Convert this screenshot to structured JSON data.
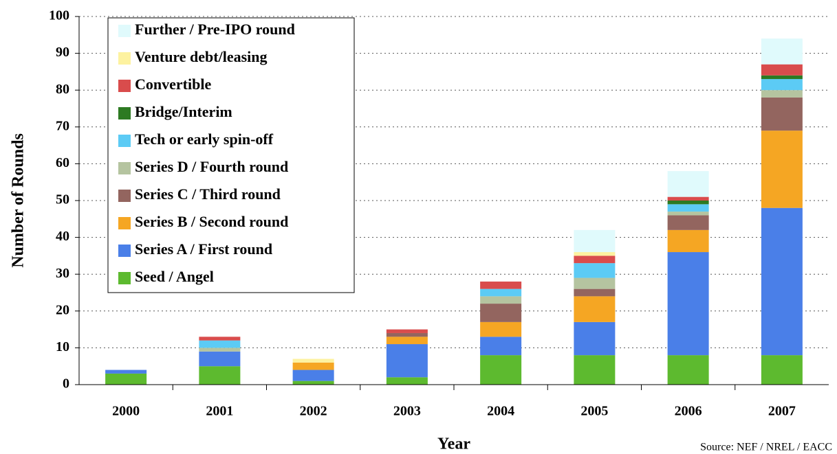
{
  "chart_data": {
    "type": "stacked_bar",
    "x_label": "Year",
    "y_label": "Number of Rounds",
    "annotation": "Source: NEF / NREL / EACC",
    "categories": [
      "2000",
      "2001",
      "2002",
      "2003",
      "2004",
      "2005",
      "2006",
      "2007"
    ],
    "series": [
      {
        "name": "Seed / Angel",
        "color": "#5dba2f",
        "values": [
          3,
          5,
          1,
          2,
          8,
          8,
          8,
          8
        ]
      },
      {
        "name": "Series A / First round",
        "color": "#4a7fe8",
        "values": [
          1,
          4,
          3,
          9,
          5,
          9,
          28,
          40
        ]
      },
      {
        "name": "Series B / Second round",
        "color": "#f5a623",
        "values": [
          0,
          0,
          2,
          2,
          4,
          7,
          6,
          21
        ]
      },
      {
        "name": "Series C / Third round",
        "color": "#93655f",
        "values": [
          0,
          0,
          0,
          1,
          5,
          2,
          4,
          9
        ]
      },
      {
        "name": "Series D / Fourth round",
        "color": "#b5c4a0",
        "values": [
          0,
          1,
          0,
          0,
          2,
          3,
          1,
          2
        ]
      },
      {
        "name": "Tech or early spin-off",
        "color": "#5ccbf5",
        "values": [
          0,
          2,
          0,
          0,
          2,
          4,
          2,
          3
        ]
      },
      {
        "name": "Bridge/Interim",
        "color": "#2d7a22",
        "values": [
          0,
          0,
          0,
          0,
          0,
          0,
          1,
          1
        ]
      },
      {
        "name": "Convertible",
        "color": "#d94c4c",
        "values": [
          0,
          1,
          0,
          1,
          2,
          2,
          1,
          3
        ]
      },
      {
        "name": "Venture debt/leasing",
        "color": "#fdf2a0",
        "values": [
          0,
          0,
          1,
          0,
          0,
          1,
          0,
          0
        ]
      },
      {
        "name": "Further / Pre-IPO round",
        "color": "#e0fafc",
        "values": [
          0,
          0,
          0,
          0,
          0,
          6,
          7,
          7
        ]
      }
    ],
    "ylim": [
      0,
      100
    ],
    "yticks": [
      0,
      10,
      20,
      30,
      40,
      50,
      60,
      70,
      80,
      90,
      100
    ],
    "grid": true,
    "legend": "upper left"
  }
}
